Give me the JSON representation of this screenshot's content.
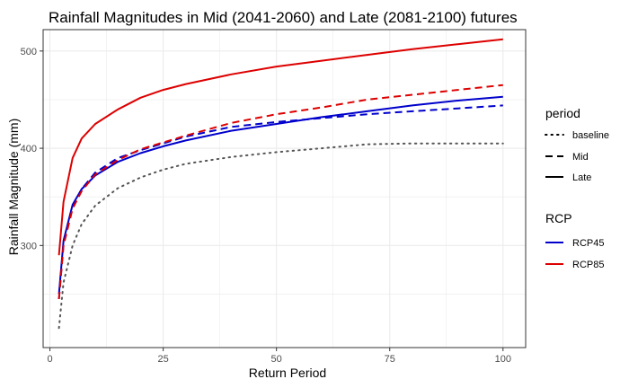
{
  "chart_data": {
    "type": "line",
    "title": "Rainfall Magnitudes in Mid (2041-2060) and Late (2081-2100) futures",
    "xlabel": "Return Period",
    "ylabel": "Rainfall Magnitude (mm)",
    "xlim": [
      -1.5,
      105
    ],
    "ylim": [
      195,
      522
    ],
    "xticks": [
      0,
      25,
      50,
      75,
      100
    ],
    "yticks": [
      300,
      400,
      500
    ],
    "minor_xticks": [
      12.5,
      37.5,
      62.5,
      87.5
    ],
    "minor_yticks": [
      250,
      350,
      450
    ],
    "grid": true,
    "background": "#ffffff",
    "grid_color": "#ebebeb",
    "legend_position": "right",
    "legend": {
      "period": {
        "title": "period",
        "items": [
          {
            "label": "baseline",
            "dash": "dotted"
          },
          {
            "label": "Mid",
            "dash": "dashed"
          },
          {
            "label": "Late",
            "dash": "solid"
          }
        ]
      },
      "rcp": {
        "title": "RCP",
        "items": [
          {
            "label": "RCP45",
            "color": "#0000cc"
          },
          {
            "label": "RCP85",
            "color": "#dd0000"
          }
        ]
      }
    },
    "x": [
      2,
      3,
      5,
      7,
      10,
      15,
      20,
      25,
      30,
      40,
      50,
      60,
      70,
      80,
      90,
      100
    ],
    "series": [
      {
        "period": "baseline",
        "rcp": "",
        "color": "#555555",
        "dash": "dotted",
        "values": [
          215,
          262,
          300,
          322,
          341,
          359,
          370,
          378,
          384,
          391,
          396,
          400,
          404,
          405,
          405,
          405
        ]
      },
      {
        "period": "Mid",
        "rcp": "RCP45",
        "color": "#0000cc",
        "dash": "dashed",
        "values": [
          245,
          302,
          340,
          358,
          375,
          390,
          398,
          405,
          412,
          422,
          427,
          431,
          435,
          438,
          441,
          444
        ]
      },
      {
        "period": "Late",
        "rcp": "RCP45",
        "color": "#0000cc",
        "dash": "solid",
        "values": [
          250,
          305,
          342,
          358,
          372,
          386,
          395,
          402,
          408,
          418,
          425,
          432,
          438,
          444,
          449,
          453
        ]
      },
      {
        "period": "Mid",
        "rcp": "RCP85",
        "color": "#dd0000",
        "dash": "dashed",
        "values": [
          245,
          300,
          338,
          356,
          373,
          388,
          399,
          406,
          413,
          426,
          435,
          442,
          450,
          455,
          460,
          465
        ]
      },
      {
        "period": "Late",
        "rcp": "RCP85",
        "color": "#dd0000",
        "dash": "solid",
        "values": [
          290,
          345,
          390,
          410,
          425,
          440,
          452,
          460,
          466,
          476,
          484,
          490,
          496,
          502,
          507,
          512
        ]
      }
    ]
  }
}
